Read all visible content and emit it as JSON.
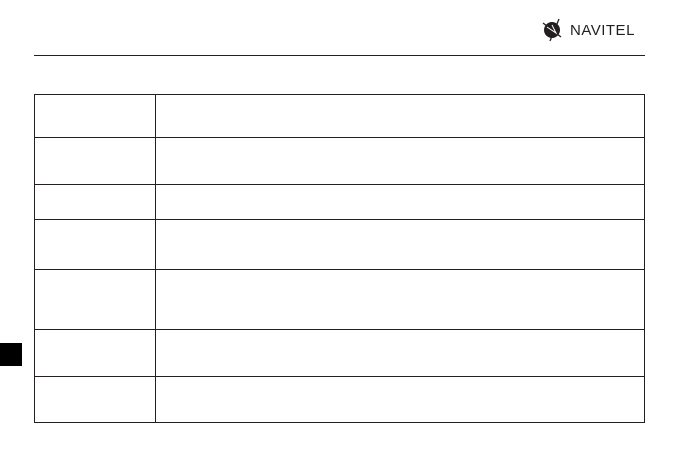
{
  "header": {
    "logo_text": "NAVITEL",
    "logo_icon": "navitel-globe-icon"
  },
  "table": {
    "rows": [
      {
        "label": "",
        "value": ""
      },
      {
        "label": "",
        "value": ""
      },
      {
        "label": "",
        "value": ""
      },
      {
        "label": "",
        "value": ""
      },
      {
        "label": "",
        "value": ""
      },
      {
        "label": "",
        "value": ""
      },
      {
        "label": "",
        "value": ""
      }
    ]
  },
  "colors": {
    "ink": "#231f20",
    "tab": "#000000"
  }
}
